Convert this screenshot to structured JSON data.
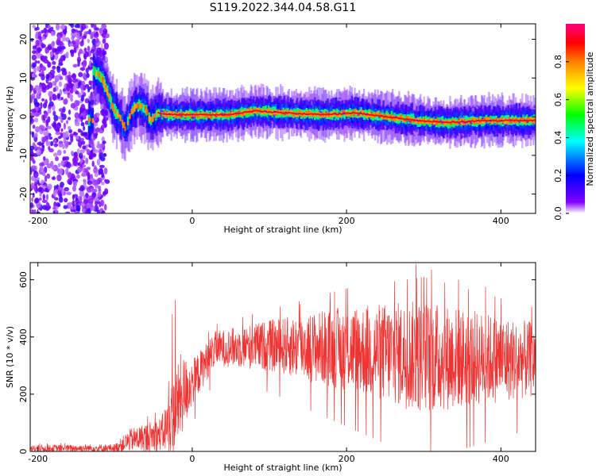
{
  "title": "S119.2022.344.04.58.G11",
  "chart_data": [
    {
      "type": "heatmap",
      "name": "spectrogram",
      "xlabel": "Height of straight line (km)",
      "ylabel": "Frequency (Hz)",
      "xlim": [
        -210,
        445
      ],
      "ylim": [
        -25,
        24
      ],
      "xticks": [
        -200,
        0,
        200,
        400
      ],
      "yticks": [
        -20,
        -10,
        0,
        10,
        20
      ],
      "colorbar": {
        "label": "Normalized spectral amplitude",
        "range": [
          0,
          1
        ],
        "ticks": [
          "0.0",
          "0.2",
          "0.4",
          "0.6",
          "0.8"
        ],
        "colors": [
          "#ffffff",
          "#8000ff",
          "#0000ff",
          "#00ffff",
          "#00ff00",
          "#ffff00",
          "#ff8000",
          "#ff0000",
          "#ff0080"
        ]
      },
      "ridge": [
        {
          "x": -130,
          "y": 12
        },
        {
          "x": -118,
          "y": 10
        },
        {
          "x": -110,
          "y": 6
        },
        {
          "x": -103,
          "y": 2
        },
        {
          "x": -96,
          "y": 0
        },
        {
          "x": -88,
          "y": -3
        },
        {
          "x": -78,
          "y": 2
        },
        {
          "x": -70,
          "y": 3
        },
        {
          "x": -62,
          "y": 2
        },
        {
          "x": -55,
          "y": -1
        },
        {
          "x": -45,
          "y": 1
        },
        {
          "x": -30,
          "y": 0.5
        },
        {
          "x": 0,
          "y": 0.5
        },
        {
          "x": 50,
          "y": 0.5
        },
        {
          "x": 80,
          "y": 1.5
        },
        {
          "x": 120,
          "y": 1
        },
        {
          "x": 170,
          "y": 0.5
        },
        {
          "x": 210,
          "y": 1
        },
        {
          "x": 250,
          "y": 0
        },
        {
          "x": 290,
          "y": -1
        },
        {
          "x": 330,
          "y": -1.5
        },
        {
          "x": 380,
          "y": -1
        },
        {
          "x": 445,
          "y": -1
        }
      ]
    },
    {
      "type": "line",
      "name": "snr",
      "xlabel": "Height of straight line (km)",
      "ylabel": "SNR (10 * v/v)",
      "xlim": [
        -210,
        445
      ],
      "ylim": [
        0,
        660
      ],
      "xticks": [
        -200,
        0,
        200,
        400
      ],
      "yticks": [
        0,
        200,
        400,
        600
      ],
      "color": "#ee3333",
      "envelope": [
        {
          "x": -210,
          "mean": 10,
          "spread": 12
        },
        {
          "x": -100,
          "mean": 12,
          "spread": 14
        },
        {
          "x": -80,
          "mean": 40,
          "spread": 40
        },
        {
          "x": -40,
          "mean": 60,
          "spread": 60
        },
        {
          "x": -25,
          "mean": 120,
          "spread": 130
        },
        {
          "x": -15,
          "mean": 190,
          "spread": 150
        },
        {
          "x": 0,
          "mean": 240,
          "spread": 80
        },
        {
          "x": 30,
          "mean": 360,
          "spread": 60
        },
        {
          "x": 100,
          "mean": 370,
          "spread": 90
        },
        {
          "x": 200,
          "mean": 360,
          "spread": 150
        },
        {
          "x": 300,
          "mean": 330,
          "spread": 200
        },
        {
          "x": 445,
          "mean": 320,
          "spread": 130
        }
      ],
      "peaks": [
        {
          "x": -22,
          "y": 530
        },
        {
          "x": -26,
          "y": 480
        },
        {
          "x": 140,
          "y": 515
        },
        {
          "x": 290,
          "y": 655
        },
        {
          "x": 310,
          "y": 635
        },
        {
          "x": 345,
          "y": 600
        },
        {
          "x": 380,
          "y": 575
        }
      ]
    }
  ]
}
